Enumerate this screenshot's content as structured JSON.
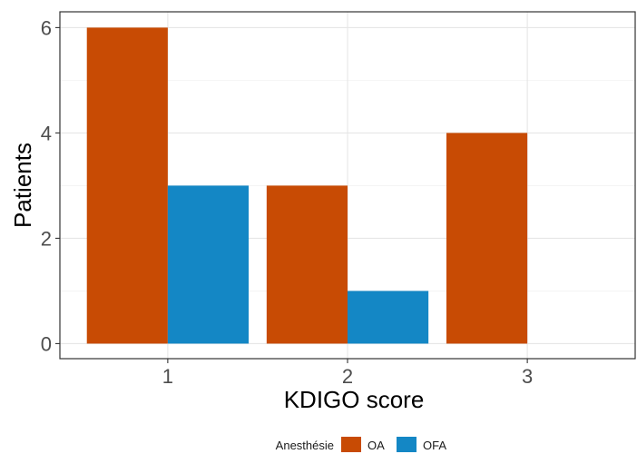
{
  "chart_data": {
    "type": "bar",
    "categories": [
      "1",
      "2",
      "3"
    ],
    "series": [
      {
        "name": "OA",
        "values": [
          6,
          3,
          4
        ],
        "color": "#C84B04"
      },
      {
        "name": "OFA",
        "values": [
          3,
          1,
          0
        ],
        "color": "#1487C5"
      }
    ],
    "xlabel": "KDIGO score",
    "ylabel": "Patients",
    "ylim": [
      -0.2857,
      6.3
    ],
    "yticks": [
      0,
      2,
      4,
      6
    ],
    "grid": true,
    "legend": {
      "title": "Anesthésie",
      "position": "bottom"
    }
  }
}
